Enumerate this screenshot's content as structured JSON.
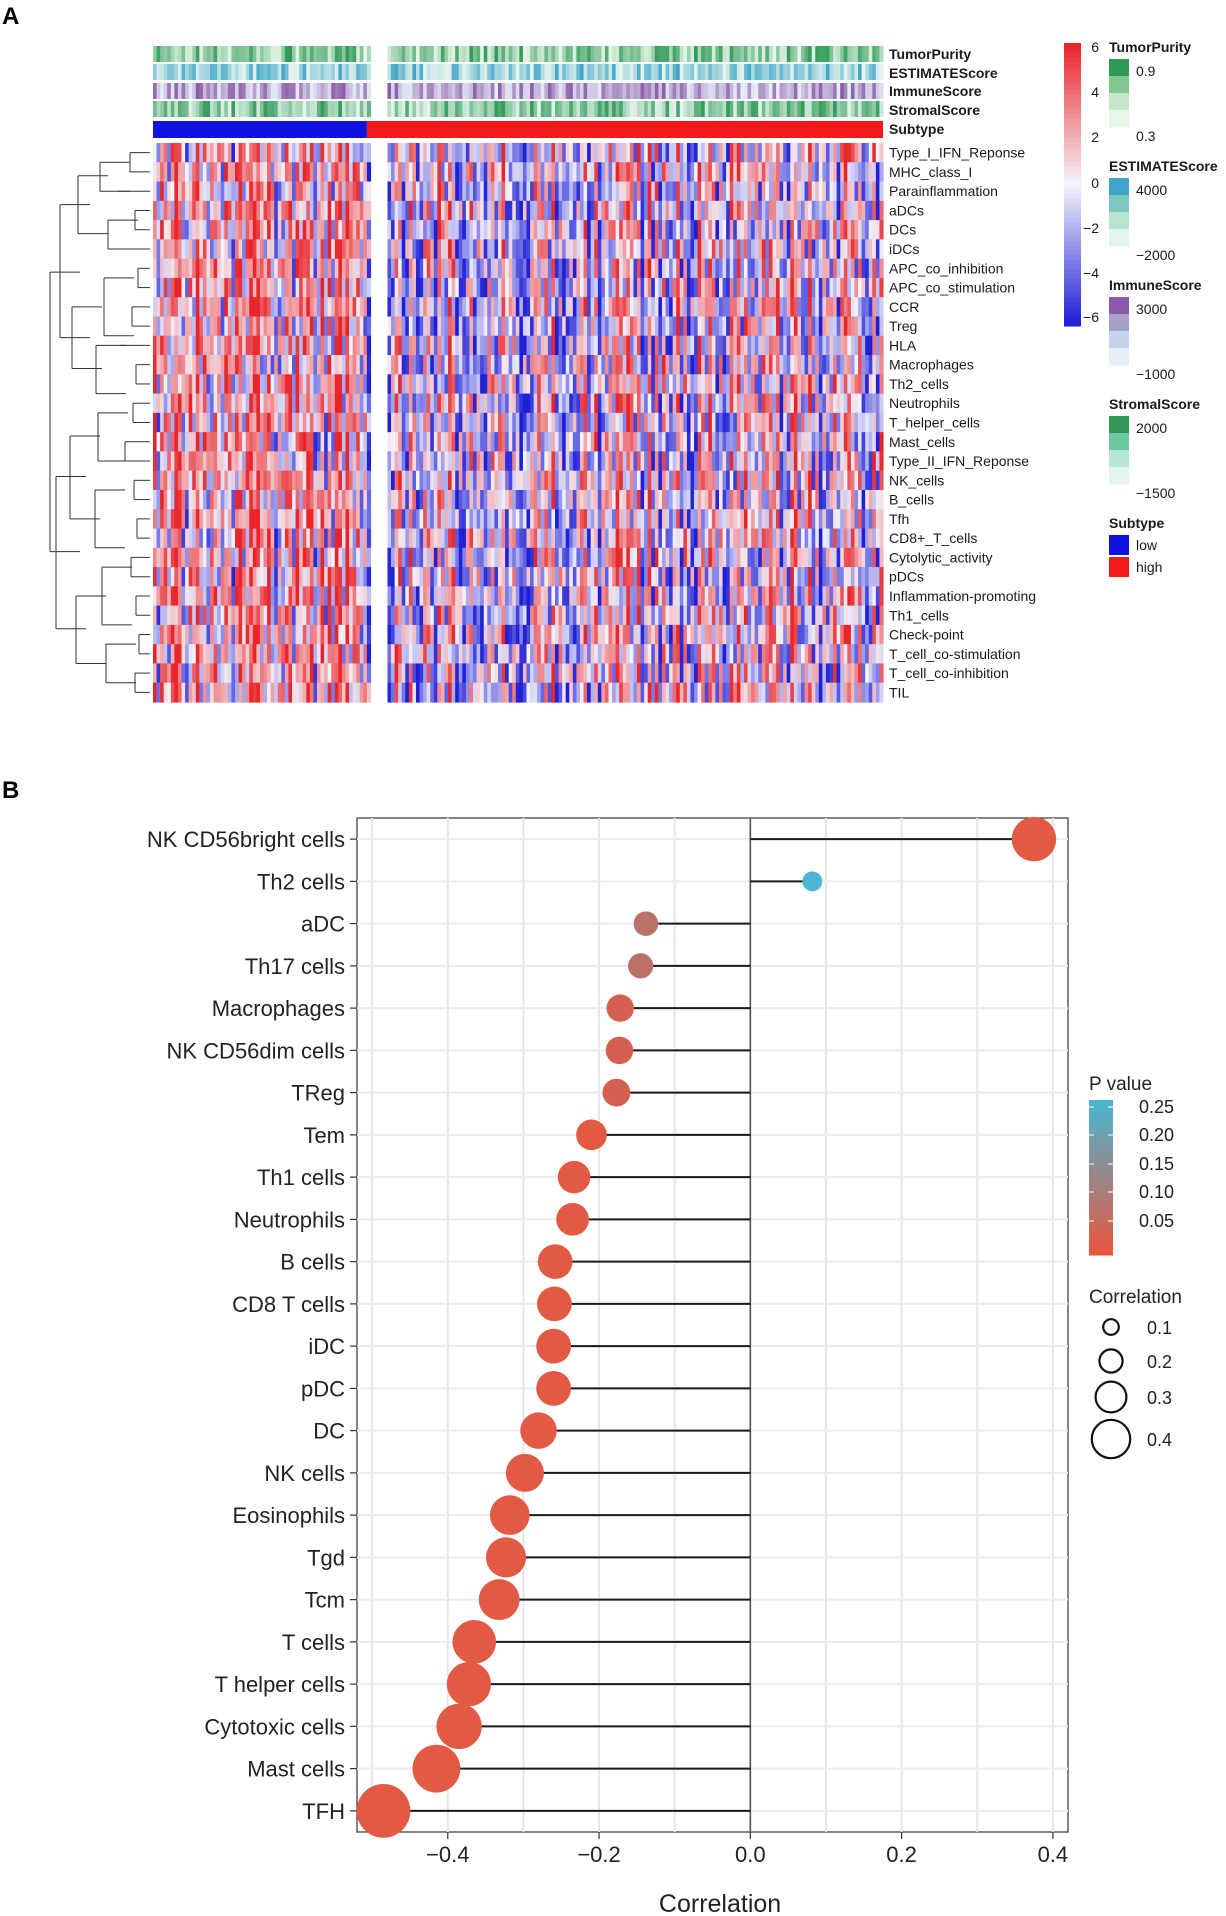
{
  "figure": {
    "panel_a_letter": "A",
    "panel_b_letter": "B"
  },
  "colors": {
    "heat_low": "#1f1fd6",
    "heat_mid": "#f4f4fb",
    "heat_high": "#e8262a",
    "subtype_low": "#1212e0",
    "subtype_high": "#f31a1a",
    "green_dark": "#2e9a55",
    "green_light": "#e8f6ea",
    "blue_dark": "#3ea6c8",
    "blue_light": "#e6f4ee",
    "purple_dark": "#8a5aa8",
    "purple_light": "#e6eef8",
    "pval_low": "#e8553f",
    "pval_high": "#49b7cf"
  },
  "chart_data": [
    {
      "type": "heatmap",
      "title": "",
      "annotation_tracks": [
        "TumorPurity",
        "ESTIMATEScore",
        "ImmuneScore",
        "StromalScore",
        "Subtype"
      ],
      "rows": [
        "Type_I_IFN_Reponse",
        "MHC_class_I",
        "Parainflammation",
        "aDCs",
        "DCs",
        "iDCs",
        "APC_co_inhibition",
        "APC_co_stimulation",
        "CCR",
        "Treg",
        "HLA",
        "Macrophages",
        "Th2_cells",
        "Neutrophils",
        "T_helper_cells",
        "Mast_cells",
        "Type_II_IFN_Reponse",
        "NK_cells",
        "B_cells",
        "Tfh",
        "CD8+_T_cells",
        "Cytolytic_activity",
        "pDCs",
        "Inflammation-promoting",
        "Th1_cells",
        "Check-point",
        "T_cell_co-stimulation",
        "T_cell_co-inhibition",
        "TIL"
      ],
      "subtype_counts": {
        "low": 60,
        "high": 140
      },
      "color_scale": {
        "min": -6,
        "max": 6,
        "ticks": [
          "6",
          "4",
          "2",
          "0",
          "−2",
          "−4",
          "−6"
        ]
      },
      "legends": [
        {
          "title": "TumorPurity",
          "labels": [
            "0.9",
            "0.3"
          ]
        },
        {
          "title": "ESTIMATEScore",
          "labels": [
            "4000",
            "−2000"
          ]
        },
        {
          "title": "ImmuneScore",
          "labels": [
            "3000",
            "−1000"
          ]
        },
        {
          "title": "StromalScore",
          "labels": [
            "2000",
            "−1500"
          ]
        },
        {
          "title": "Subtype",
          "labels": [
            "low",
            "high"
          ]
        }
      ]
    },
    {
      "type": "lollipop",
      "xlabel": "Correlation",
      "ylabel": "",
      "xlim": [
        -0.52,
        0.42
      ],
      "xticks": [
        -0.4,
        -0.2,
        0.0,
        0.2,
        0.4
      ],
      "xtick_labels": [
        "−0.4",
        "−0.2",
        "0.0",
        "0.2",
        "0.4"
      ],
      "categories": [
        "NK CD56bright cells",
        "Th2 cells",
        "aDC",
        "Th17 cells",
        "Macrophages",
        "NK CD56dim cells",
        "TReg",
        "Tem",
        "Th1 cells",
        "Neutrophils",
        "B cells",
        "CD8 T cells",
        "iDC",
        "pDC",
        "DC",
        "NK cells",
        "Eosinophils",
        "Tgd",
        "Tcm",
        "T cells",
        "T helper cells",
        "Cytotoxic cells",
        "Mast cells",
        "TFH"
      ],
      "values": [
        0.375,
        0.082,
        -0.138,
        -0.145,
        -0.172,
        -0.173,
        -0.177,
        -0.21,
        -0.233,
        -0.235,
        -0.258,
        -0.259,
        -0.26,
        -0.26,
        -0.28,
        -0.298,
        -0.318,
        -0.323,
        -0.332,
        -0.365,
        -0.372,
        -0.385,
        -0.415,
        -0.485
      ],
      "pvalues": [
        0.01,
        0.27,
        0.08,
        0.075,
        0.03,
        0.03,
        0.03,
        0.01,
        0.01,
        0.01,
        0.01,
        0.01,
        0.01,
        0.01,
        0.01,
        0.01,
        0.01,
        0.01,
        0.01,
        0.01,
        0.01,
        0.01,
        0.01,
        0.01
      ],
      "pvalue_legend": {
        "title": "P value",
        "labels": [
          "0.25",
          "0.20",
          "0.15",
          "0.10",
          "0.05"
        ]
      },
      "size_legend": {
        "title": "Correlation",
        "labels": [
          "0.1",
          "0.2",
          "0.3",
          "0.4"
        ],
        "values": [
          0.1,
          0.2,
          0.3,
          0.4
        ]
      }
    }
  ]
}
